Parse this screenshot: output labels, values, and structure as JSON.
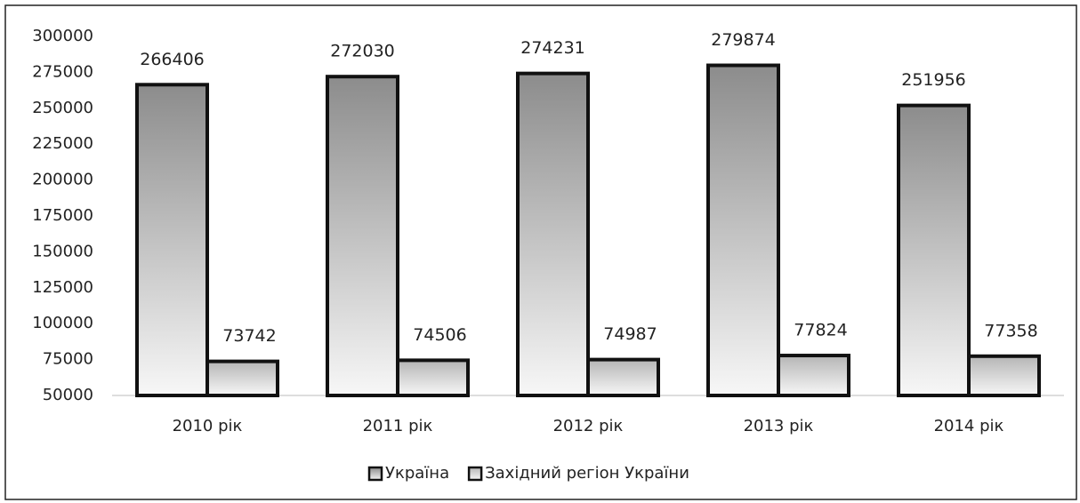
{
  "chart_data": {
    "type": "bar",
    "categories": [
      "2010 рік",
      "2011 рік",
      "2012 рік",
      "2013 рік",
      "2014 рік"
    ],
    "series": [
      {
        "name": "Україна",
        "color": "#8c8c8c",
        "values": [
          266406,
          272030,
          274231,
          279874,
          251956
        ]
      },
      {
        "name": "Західний регіон України",
        "color": "#b5b5b5",
        "values": [
          73742,
          74506,
          74987,
          77824,
          77358
        ]
      }
    ],
    "ylim": [
      50000,
      300000
    ],
    "yticks": [
      50000,
      75000,
      100000,
      125000,
      150000,
      175000,
      200000,
      225000,
      250000,
      275000,
      300000
    ],
    "grid": false,
    "legend": "bottom"
  }
}
